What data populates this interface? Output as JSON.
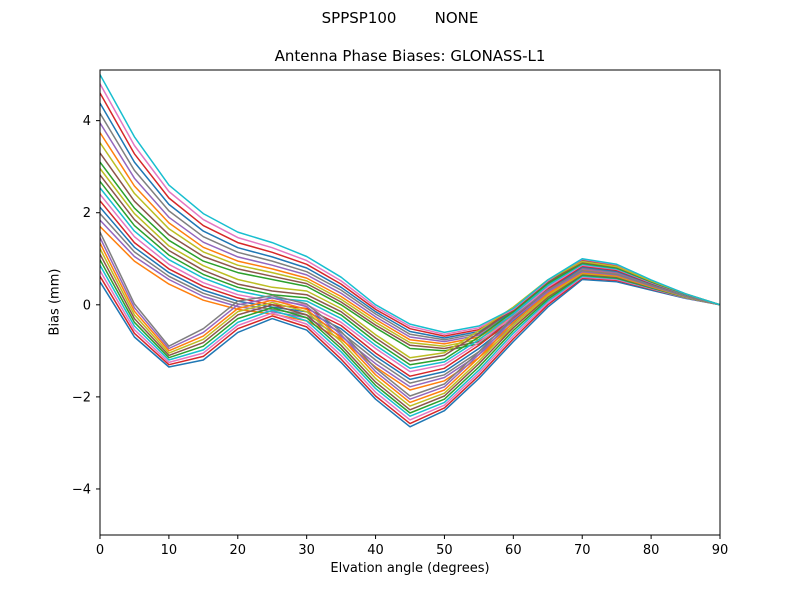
{
  "figure": {
    "suptitle": "SPPSP100        NONE"
  },
  "chart_data": {
    "type": "line",
    "suptitle": "SPPSP100        NONE",
    "title": "Antenna Phase Biases: GLONASS-L1",
    "xlabel": "Elvation angle (degrees)",
    "ylabel": "Bias (mm)",
    "xlim": [
      0,
      90
    ],
    "ylim": [
      -5.0,
      5.1
    ],
    "xticks": [
      0,
      10,
      20,
      30,
      40,
      50,
      60,
      70,
      80,
      90
    ],
    "yticks": [
      -4,
      -2,
      0,
      2,
      4
    ],
    "grid": false,
    "legend_position": "none",
    "x": [
      0,
      5,
      10,
      15,
      20,
      25,
      30,
      35,
      40,
      45,
      50,
      55,
      60,
      65,
      70,
      75,
      80,
      85,
      90
    ],
    "series": [
      {
        "color": "#1f77b4",
        "values": [
          0.5,
          -0.7,
          -1.35,
          -1.2,
          -0.6,
          -0.3,
          -0.55,
          -1.25,
          -2.05,
          -2.65,
          -2.3,
          -1.6,
          -0.8,
          -0.05,
          0.55,
          0.5,
          0.32,
          0.14,
          0.0
        ]
      },
      {
        "color": "#ff7f0e",
        "values": [
          1.7,
          0.95,
          0.45,
          0.1,
          -0.1,
          -0.2,
          -0.35,
          -0.75,
          -1.35,
          -1.85,
          -1.65,
          -1.15,
          -0.5,
          0.18,
          0.76,
          0.68,
          0.43,
          0.19,
          0.0
        ]
      },
      {
        "color": "#2ca02c",
        "values": [
          3.1,
          2.1,
          1.4,
          0.95,
          0.7,
          0.55,
          0.4,
          0.0,
          -0.5,
          -0.95,
          -1.0,
          -0.85,
          -0.35,
          0.35,
          0.88,
          0.78,
          0.48,
          0.2,
          0.0
        ]
      },
      {
        "color": "#d62728",
        "values": [
          0.62,
          -0.62,
          -1.3,
          -1.12,
          -0.52,
          -0.24,
          -0.48,
          -1.18,
          -1.98,
          -2.58,
          -2.24,
          -1.54,
          -0.74,
          0.0,
          0.58,
          0.53,
          0.34,
          0.15,
          0.0
        ]
      },
      {
        "color": "#9467bd",
        "values": [
          1.84,
          1.05,
          0.55,
          0.18,
          -0.04,
          -0.15,
          -0.28,
          -0.68,
          -1.28,
          -1.78,
          -1.58,
          -1.08,
          -0.45,
          0.22,
          0.78,
          0.7,
          0.44,
          0.2,
          0.0
        ]
      },
      {
        "color": "#8c564b",
        "values": [
          3.3,
          2.25,
          1.52,
          1.05,
          0.78,
          0.62,
          0.46,
          0.06,
          -0.44,
          -0.88,
          -0.95,
          -0.8,
          -0.32,
          0.38,
          0.9,
          0.8,
          0.49,
          0.21,
          0.0
        ]
      },
      {
        "color": "#e377c2",
        "values": [
          0.74,
          -0.54,
          -1.25,
          -1.05,
          -0.45,
          -0.18,
          -0.42,
          -1.1,
          -1.9,
          -2.5,
          -2.18,
          -1.48,
          -0.68,
          0.04,
          0.6,
          0.55,
          0.35,
          0.15,
          0.0
        ]
      },
      {
        "color": "#7f7f7f",
        "values": [
          1.98,
          1.15,
          0.62,
          0.25,
          0.02,
          -0.1,
          -0.22,
          -0.6,
          -1.2,
          -1.7,
          -1.52,
          -1.02,
          -0.4,
          0.26,
          0.8,
          0.72,
          0.45,
          0.2,
          0.0
        ]
      },
      {
        "color": "#bcbd22",
        "values": [
          3.52,
          2.42,
          1.65,
          1.15,
          0.86,
          0.7,
          0.52,
          0.12,
          -0.38,
          -0.82,
          -0.9,
          -0.75,
          -0.28,
          0.4,
          0.92,
          0.81,
          0.5,
          0.21,
          0.0
        ]
      },
      {
        "color": "#17becf",
        "values": [
          0.86,
          -0.46,
          -1.2,
          -0.98,
          -0.38,
          -0.12,
          -0.35,
          -1.02,
          -1.82,
          -2.42,
          -2.12,
          -1.42,
          -0.62,
          0.08,
          0.62,
          0.57,
          0.36,
          0.16,
          0.0
        ]
      },
      {
        "color": "#1f77b4",
        "values": [
          2.12,
          1.25,
          0.7,
          0.32,
          0.08,
          -0.05,
          -0.15,
          -0.52,
          -1.12,
          -1.62,
          -1.45,
          -0.95,
          -0.35,
          0.3,
          0.82,
          0.73,
          0.46,
          0.21,
          0.0
        ]
      },
      {
        "color": "#ff7f0e",
        "values": [
          3.74,
          2.58,
          1.78,
          1.25,
          0.95,
          0.78,
          0.58,
          0.18,
          -0.32,
          -0.76,
          -0.85,
          -0.7,
          -0.25,
          0.42,
          0.93,
          0.82,
          0.5,
          0.22,
          0.0
        ]
      },
      {
        "color": "#2ca02c",
        "values": [
          0.98,
          -0.38,
          -1.15,
          -0.9,
          -0.3,
          -0.06,
          -0.28,
          -0.95,
          -1.75,
          -2.35,
          -2.05,
          -1.35,
          -0.56,
          0.12,
          0.64,
          0.58,
          0.37,
          0.16,
          0.0
        ]
      },
      {
        "color": "#d62728",
        "values": [
          2.26,
          1.35,
          0.78,
          0.4,
          0.15,
          0.0,
          -0.08,
          -0.45,
          -1.05,
          -1.55,
          -1.38,
          -0.88,
          -0.3,
          0.34,
          0.84,
          0.75,
          0.47,
          0.21,
          0.0
        ]
      },
      {
        "color": "#9467bd",
        "values": [
          3.95,
          2.75,
          1.9,
          1.36,
          1.04,
          0.86,
          0.65,
          0.25,
          -0.26,
          -0.7,
          -0.8,
          -0.66,
          -0.22,
          0.44,
          0.95,
          0.83,
          0.51,
          0.22,
          0.0
        ]
      },
      {
        "color": "#8c564b",
        "values": [
          1.1,
          -0.3,
          -1.1,
          -0.82,
          -0.22,
          0.0,
          -0.22,
          -0.88,
          -1.68,
          -2.28,
          -1.98,
          -1.28,
          -0.5,
          0.16,
          0.66,
          0.6,
          0.38,
          0.17,
          0.0
        ]
      },
      {
        "color": "#e377c2",
        "values": [
          2.4,
          1.48,
          0.88,
          0.48,
          0.22,
          0.08,
          0.0,
          -0.38,
          -0.95,
          -1.45,
          -1.3,
          -0.82,
          -0.25,
          0.38,
          0.86,
          0.77,
          0.48,
          0.22,
          0.0
        ]
      },
      {
        "color": "#7f7f7f",
        "values": [
          4.16,
          2.92,
          2.04,
          1.48,
          1.14,
          0.95,
          0.72,
          0.32,
          -0.2,
          -0.64,
          -0.76,
          -0.62,
          -0.18,
          0.46,
          0.96,
          0.84,
          0.52,
          0.22,
          0.0
        ]
      },
      {
        "color": "#bcbd22",
        "values": [
          1.22,
          -0.22,
          -1.05,
          -0.75,
          -0.15,
          0.05,
          -0.15,
          -0.8,
          -1.6,
          -2.2,
          -1.92,
          -1.22,
          -0.44,
          0.2,
          0.68,
          0.62,
          0.39,
          0.17,
          0.0
        ]
      },
      {
        "color": "#17becf",
        "values": [
          2.54,
          1.6,
          0.98,
          0.58,
          0.3,
          0.15,
          0.08,
          -0.3,
          -0.88,
          -1.38,
          -1.24,
          -0.76,
          -0.2,
          0.42,
          0.88,
          0.78,
          0.49,
          0.22,
          0.0
        ]
      },
      {
        "color": "#1f77b4",
        "values": [
          4.38,
          3.1,
          2.18,
          1.6,
          1.24,
          1.04,
          0.8,
          0.38,
          -0.15,
          -0.58,
          -0.72,
          -0.58,
          -0.15,
          0.48,
          0.97,
          0.85,
          0.52,
          0.23,
          0.0
        ]
      },
      {
        "color": "#ff7f0e",
        "values": [
          1.34,
          -0.14,
          -1.0,
          -0.68,
          -0.08,
          0.1,
          -0.1,
          -0.72,
          -1.52,
          -2.12,
          -1.85,
          -1.15,
          -0.38,
          0.24,
          0.7,
          0.63,
          0.4,
          0.18,
          0.0
        ]
      },
      {
        "color": "#2ca02c",
        "values": [
          2.68,
          1.72,
          1.08,
          0.66,
          0.38,
          0.22,
          0.15,
          -0.22,
          -0.8,
          -1.3,
          -1.18,
          -0.7,
          -0.15,
          0.46,
          0.9,
          0.8,
          0.5,
          0.23,
          0.0
        ]
      },
      {
        "color": "#d62728",
        "values": [
          4.6,
          3.28,
          2.32,
          1.72,
          1.35,
          1.14,
          0.88,
          0.45,
          -0.1,
          -0.52,
          -0.68,
          -0.54,
          -0.12,
          0.5,
          0.98,
          0.86,
          0.53,
          0.23,
          0.0
        ]
      },
      {
        "color": "#9467bd",
        "values": [
          1.46,
          -0.06,
          -0.95,
          -0.6,
          0.0,
          0.15,
          -0.04,
          -0.65,
          -1.45,
          -2.05,
          -1.78,
          -1.08,
          -0.32,
          0.28,
          0.72,
          0.65,
          0.41,
          0.18,
          0.0
        ]
      },
      {
        "color": "#8c564b",
        "values": [
          2.82,
          1.85,
          1.18,
          0.75,
          0.45,
          0.3,
          0.22,
          -0.15,
          -0.72,
          -1.22,
          -1.1,
          -0.62,
          -0.1,
          0.5,
          0.92,
          0.82,
          0.51,
          0.23,
          0.0
        ]
      },
      {
        "color": "#e377c2",
        "values": [
          4.8,
          3.46,
          2.46,
          1.85,
          1.46,
          1.24,
          0.96,
          0.52,
          -0.05,
          -0.47,
          -0.64,
          -0.5,
          -0.1,
          0.52,
          0.99,
          0.87,
          0.53,
          0.24,
          0.0
        ]
      },
      {
        "color": "#7f7f7f",
        "values": [
          1.58,
          0.02,
          -0.9,
          -0.52,
          0.08,
          0.2,
          0.02,
          -0.58,
          -1.38,
          -1.98,
          -1.72,
          -1.02,
          -0.26,
          0.32,
          0.74,
          0.66,
          0.42,
          0.19,
          0.0
        ]
      },
      {
        "color": "#bcbd22",
        "values": [
          2.96,
          1.98,
          1.28,
          0.85,
          0.55,
          0.38,
          0.3,
          -0.08,
          -0.65,
          -1.15,
          -1.04,
          -0.56,
          -0.05,
          0.54,
          0.94,
          0.83,
          0.52,
          0.24,
          0.0
        ]
      },
      {
        "color": "#17becf",
        "values": [
          5.0,
          3.65,
          2.6,
          1.98,
          1.58,
          1.35,
          1.05,
          0.6,
          0.0,
          -0.42,
          -0.6,
          -0.46,
          -0.08,
          0.54,
          1.0,
          0.88,
          0.54,
          0.24,
          0.0
        ]
      }
    ]
  }
}
